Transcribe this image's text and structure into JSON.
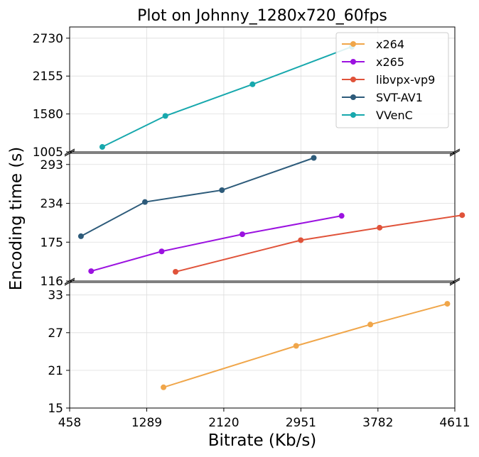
{
  "chart_data": {
    "type": "line",
    "title": "Plot on Johnny_1280x720_60fps",
    "xlabel": "Bitrate (Kb/s)",
    "ylabel": "Encoding time (s)",
    "x_ticks": [
      458,
      1289,
      2120,
      2951,
      3782,
      4611
    ],
    "xlim": [
      458,
      4611
    ],
    "broken_y_axis": true,
    "y_segments": [
      {
        "name": "top",
        "ylim": [
          1005,
          2900
        ],
        "ticks": [
          1005,
          1580,
          2155,
          2730
        ]
      },
      {
        "name": "middle",
        "ylim": [
          116,
          310
        ],
        "ticks": [
          116,
          175,
          234,
          293
        ]
      },
      {
        "name": "bottom",
        "ylim": [
          15,
          35
        ],
        "ticks": [
          15,
          21,
          27,
          33
        ]
      }
    ],
    "legend_position": "top-right",
    "grid": true,
    "series": [
      {
        "name": "x264",
        "color": "#f0a64a",
        "segment": "bottom",
        "x": [
          1470,
          2900,
          3700,
          4530
        ],
        "y": [
          18.3,
          24.9,
          28.3,
          31.6
        ]
      },
      {
        "name": "x265",
        "color": "#9b12e0",
        "segment": "middle",
        "x": [
          690,
          1450,
          2320,
          3390
        ],
        "y": [
          131,
          161,
          187,
          215
        ]
      },
      {
        "name": "libvpx-vp9",
        "color": "#e0533a",
        "segment": "middle",
        "x": [
          1600,
          2950,
          3800,
          4690
        ],
        "y": [
          130,
          178,
          197,
          216
        ]
      },
      {
        "name": "SVT-AV1",
        "color": "#2d5b7a",
        "segment": "middle",
        "x": [
          580,
          1270,
          2100,
          3090
        ],
        "y": [
          184,
          236,
          254,
          303
        ]
      },
      {
        "name": "VVenC",
        "color": "#17a8ad",
        "segment": "top",
        "x": [
          810,
          1490,
          2430,
          3500
        ],
        "y": [
          1080,
          1550,
          2030,
          2600
        ]
      }
    ]
  }
}
